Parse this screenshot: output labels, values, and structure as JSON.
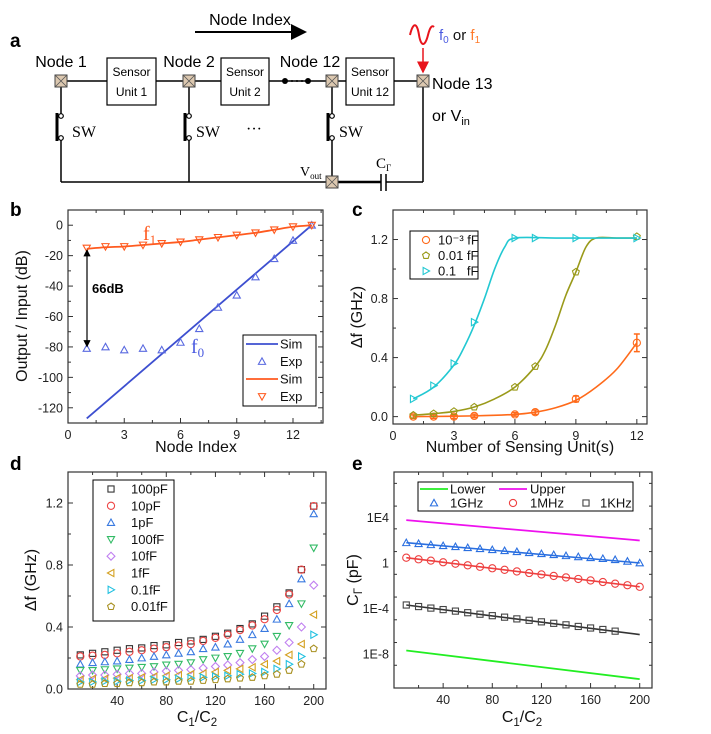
{
  "figure": {
    "panel_labels": {
      "a": "a",
      "b": "b",
      "c": "c",
      "d": "d",
      "e": "e"
    },
    "diagram": {
      "direction_label": "Node Index",
      "nodes": [
        "Node 1",
        "Node 2",
        "Node 12",
        "Node 13"
      ],
      "node13_alt_prefix": "or V",
      "node13_alt_sub": "in",
      "sensor_units": [
        {
          "line1": "Sensor",
          "line2": "Unit 1"
        },
        {
          "line1": "Sensor",
          "line2": "Unit 2"
        },
        {
          "line1": "Sensor",
          "line2": "Unit 12"
        }
      ],
      "switch_label": "SW",
      "ellipsis": "···",
      "vout_main": "V",
      "vout_sub": "out",
      "cap_main": "C",
      "cap_sub": "Γ",
      "input_f0_main": "f",
      "input_f0_sub": "0",
      "input_or": " or ",
      "input_f1_main": "f",
      "input_f1_sub": "1",
      "colors": {
        "f0": "#4a5ae0",
        "f1": "#ff7a2a",
        "signal": "#e8141c",
        "node_fill": "#dcc8b0"
      }
    }
  },
  "chart_data": [
    {
      "id": "b",
      "type": "line",
      "xlabel": [
        {
          "t": "Node Index"
        }
      ],
      "ylabel": [
        {
          "t": "Output / Input (dB)"
        }
      ],
      "xlim": [
        0,
        13.6
      ],
      "ylim": [
        -130,
        10
      ],
      "xticks": [
        0,
        3,
        6,
        9,
        12
      ],
      "yticks": [
        0,
        -20,
        -40,
        -60,
        -80,
        -100,
        -120
      ],
      "legend_position": "bottom-right",
      "annotations": {
        "f1_main": "f",
        "f1_sub": "1",
        "f0_main": "f",
        "f0_sub": "0",
        "gap": "66dB"
      },
      "series": [
        {
          "name": "Sim",
          "kind": "line",
          "color": "#3d4fd0",
          "points": [
            [
              1,
              -127
            ],
            [
              13,
              0
            ]
          ]
        },
        {
          "name": "Exp",
          "kind": "marker",
          "marker": "triangle-up",
          "color": "#5a6ae0",
          "x": [
            1,
            2,
            3,
            4,
            5,
            6,
            7,
            8,
            9,
            10,
            11,
            12,
            13
          ],
          "y": [
            -81,
            -80,
            -82,
            -81,
            -82,
            -77,
            -68,
            -54,
            -46,
            -34,
            -22,
            -10,
            0
          ]
        },
        {
          "name": "Sim",
          "kind": "line",
          "color": "#ff5a1f",
          "points": [
            [
              1,
              -15.5
            ],
            [
              2,
              -14.5
            ],
            [
              3,
              -14
            ],
            [
              4,
              -13
            ],
            [
              5,
              -12
            ],
            [
              6,
              -11
            ],
            [
              7,
              -9.5
            ],
            [
              8,
              -8
            ],
            [
              9,
              -6.5
            ],
            [
              10,
              -5
            ],
            [
              11,
              -3
            ],
            [
              12,
              -1
            ],
            [
              13,
              0
            ]
          ]
        },
        {
          "name": "Exp",
          "kind": "marker",
          "marker": "triangle-down",
          "color": "#ff5a1f",
          "x": [
            1,
            2,
            3,
            4,
            5,
            6,
            7,
            8,
            9,
            10,
            11,
            12,
            13
          ],
          "y": [
            -15,
            -14,
            -14,
            -13,
            -12,
            -11,
            -9.5,
            -8,
            -6.5,
            -5,
            -3,
            -1,
            0
          ]
        }
      ]
    },
    {
      "id": "c",
      "type": "scatter",
      "xlabel": [
        {
          "t": "Number of Sensing Unit(s)"
        }
      ],
      "ylabel": [
        {
          "t": "Δf (GHz)"
        }
      ],
      "xlim": [
        0,
        12.5
      ],
      "ylim": [
        -0.05,
        1.4
      ],
      "xticks": [
        0,
        3,
        6,
        9,
        12
      ],
      "yticks": [
        0.0,
        0.4,
        0.8,
        1.2
      ],
      "ytick_decimals": 1,
      "legend_position": "top-left",
      "series": [
        {
          "name": "10⁻³ fF",
          "marker": "circle",
          "color": "#ff6a1a",
          "x": [
            1,
            2,
            3,
            4,
            6,
            7,
            9,
            12
          ],
          "y": [
            0,
            0,
            0,
            0.005,
            0.015,
            0.03,
            0.12,
            0.5
          ],
          "error": [
            0.012,
            0.012,
            0.012,
            0.012,
            0.012,
            0.015,
            0.02,
            0.06
          ],
          "fit": [
            [
              1,
              0
            ],
            [
              4,
              0.005
            ],
            [
              6,
              0.015
            ],
            [
              7,
              0.03
            ],
            [
              8,
              0.06
            ],
            [
              9,
              0.11
            ],
            [
              10,
              0.2
            ],
            [
              11,
              0.32
            ],
            [
              12,
              0.5
            ]
          ]
        },
        {
          "name": "0.01 fF",
          "marker": "pentagon",
          "color": "#9a9a1a",
          "x": [
            1,
            2,
            3,
            4,
            6,
            7,
            9,
            12
          ],
          "y": [
            0.01,
            0.02,
            0.035,
            0.065,
            0.2,
            0.34,
            0.98,
            1.22
          ],
          "fit": [
            [
              1,
              0.01
            ],
            [
              2,
              0.02
            ],
            [
              3,
              0.035
            ],
            [
              4,
              0.065
            ],
            [
              5,
              0.12
            ],
            [
              6,
              0.2
            ],
            [
              7,
              0.34
            ],
            [
              7.5,
              0.45
            ],
            [
              8,
              0.62
            ],
            [
              8.5,
              0.82
            ],
            [
              9,
              0.98
            ],
            [
              9.5,
              1.15
            ],
            [
              10,
              1.21
            ],
            [
              11,
              1.21
            ],
            [
              12,
              1.21
            ]
          ]
        },
        {
          "name": "0.1   fF",
          "marker": "triangle-right",
          "color": "#22c8d2",
          "x": [
            1,
            2,
            3,
            4,
            6,
            7,
            9,
            12
          ],
          "y": [
            0.12,
            0.21,
            0.36,
            0.64,
            1.21,
            1.21,
            1.21,
            1.21
          ],
          "fit": [
            [
              1,
              0.12
            ],
            [
              2,
              0.2
            ],
            [
              3,
              0.35
            ],
            [
              3.5,
              0.47
            ],
            [
              4,
              0.62
            ],
            [
              4.5,
              0.8
            ],
            [
              5,
              1.0
            ],
            [
              5.5,
              1.15
            ],
            [
              6,
              1.21
            ],
            [
              8,
              1.21
            ],
            [
              10,
              1.21
            ],
            [
              12,
              1.21
            ]
          ]
        }
      ]
    },
    {
      "id": "d",
      "type": "scatter",
      "xlabel": [
        {
          "t": "C"
        },
        {
          "t": "1",
          "sub": true
        },
        {
          "t": "/C"
        },
        {
          "t": "2",
          "sub": true
        }
      ],
      "ylabel": [
        {
          "t": "Δf (GHz)"
        }
      ],
      "xlim": [
        0,
        210
      ],
      "ylim": [
        0,
        1.4
      ],
      "xticks": [
        40,
        80,
        120,
        160,
        200
      ],
      "yticks": [
        0.0,
        0.4,
        0.8,
        1.2
      ],
      "ytick_decimals": 1,
      "legend_position": "top-left",
      "x": [
        10,
        20,
        30,
        40,
        50,
        60,
        70,
        80,
        90,
        100,
        110,
        120,
        130,
        140,
        150,
        160,
        170,
        180,
        190,
        200
      ],
      "series": [
        {
          "name": "100pF",
          "marker": "square",
          "color": "#333333",
          "y": [
            0.22,
            0.23,
            0.24,
            0.25,
            0.26,
            0.265,
            0.28,
            0.285,
            0.3,
            0.31,
            0.32,
            0.34,
            0.36,
            0.39,
            0.42,
            0.47,
            0.53,
            0.62,
            0.77,
            1.18
          ]
        },
        {
          "name": "10pF",
          "marker": "circle",
          "color": "#ee4444",
          "y": [
            0.21,
            0.215,
            0.22,
            0.23,
            0.24,
            0.25,
            0.26,
            0.27,
            0.28,
            0.29,
            0.31,
            0.33,
            0.35,
            0.38,
            0.41,
            0.45,
            0.51,
            0.61,
            0.77,
            1.18
          ]
        },
        {
          "name": "1pF",
          "marker": "triangle-up",
          "color": "#3a7ae0",
          "y": [
            0.16,
            0.17,
            0.175,
            0.18,
            0.19,
            0.2,
            0.21,
            0.22,
            0.23,
            0.24,
            0.26,
            0.27,
            0.29,
            0.32,
            0.35,
            0.39,
            0.45,
            0.55,
            0.71,
            1.13
          ]
        },
        {
          "name": "100fF",
          "marker": "triangle-down",
          "color": "#33bb66",
          "y": [
            0.12,
            0.12,
            0.125,
            0.13,
            0.135,
            0.14,
            0.145,
            0.155,
            0.16,
            0.17,
            0.19,
            0.2,
            0.21,
            0.23,
            0.26,
            0.29,
            0.34,
            0.41,
            0.55,
            0.91
          ]
        },
        {
          "name": "10fF",
          "marker": "diamond",
          "color": "#c080f0",
          "y": [
            0.085,
            0.09,
            0.09,
            0.095,
            0.1,
            0.1,
            0.11,
            0.115,
            0.12,
            0.125,
            0.135,
            0.145,
            0.155,
            0.17,
            0.19,
            0.21,
            0.25,
            0.3,
            0.4,
            0.67
          ]
        },
        {
          "name": "1fF",
          "marker": "triangle-left",
          "color": "#d4a020",
          "y": [
            0.06,
            0.065,
            0.065,
            0.07,
            0.07,
            0.075,
            0.08,
            0.085,
            0.09,
            0.095,
            0.1,
            0.11,
            0.12,
            0.13,
            0.14,
            0.16,
            0.18,
            0.22,
            0.29,
            0.48
          ]
        },
        {
          "name": "0.1fF",
          "marker": "triangle-right",
          "color": "#20c0e0",
          "y": [
            0.045,
            0.045,
            0.05,
            0.05,
            0.055,
            0.055,
            0.06,
            0.06,
            0.065,
            0.07,
            0.075,
            0.08,
            0.085,
            0.095,
            0.1,
            0.11,
            0.13,
            0.16,
            0.21,
            0.35
          ]
        },
        {
          "name": "0.01fF",
          "marker": "pentagon",
          "color": "#a89020",
          "y": [
            0.03,
            0.03,
            0.035,
            0.035,
            0.04,
            0.04,
            0.045,
            0.045,
            0.05,
            0.05,
            0.055,
            0.06,
            0.065,
            0.07,
            0.075,
            0.085,
            0.095,
            0.12,
            0.16,
            0.26
          ]
        }
      ]
    },
    {
      "id": "e",
      "type": "scatter",
      "xlabel": [
        {
          "t": "C"
        },
        {
          "t": "1",
          "sub": true
        },
        {
          "t": "/C"
        },
        {
          "t": "2",
          "sub": true
        }
      ],
      "ylabel": [
        {
          "t": "C"
        },
        {
          "t": "Γ",
          "sub": true
        },
        {
          "t": " (pF)"
        }
      ],
      "xlim": [
        0,
        210
      ],
      "ylim": [
        1e-11,
        100000000.0
      ],
      "ylog": true,
      "xticks": [
        40,
        80,
        120,
        160,
        200
      ],
      "yticks": [
        10000.0,
        1,
        0.0001,
        1e-08
      ],
      "ytick_labels": [
        "1E4",
        "1",
        "1E-4",
        "1E-8"
      ],
      "legend_position": "top",
      "series": [
        {
          "name": "Lower",
          "kind": "line",
          "color": "#22ee22",
          "points": [
            [
              10,
              2e-08
            ],
            [
              200,
              6e-11
            ]
          ]
        },
        {
          "name": "Upper",
          "kind": "line",
          "color": "#ee11ee",
          "points": [
            [
              10,
              5800
            ],
            [
              200,
              95
            ]
          ]
        },
        {
          "name": "1GHz",
          "marker": "triangle-up",
          "color": "#2a6fe0",
          "x": [
            10,
            20,
            30,
            40,
            50,
            60,
            70,
            80,
            90,
            100,
            110,
            120,
            130,
            140,
            150,
            160,
            170,
            180,
            190,
            200
          ],
          "y": [
            60,
            50,
            40,
            33,
            27,
            22,
            18,
            14.6,
            12,
            9.8,
            8,
            6.5,
            5.3,
            4.3,
            3.5,
            2.9,
            2.4,
            1.95,
            1.4,
            1.0
          ],
          "fit": [
            [
              10,
              60
            ],
            [
              200,
              1
            ]
          ]
        },
        {
          "name": "1MHz",
          "marker": "circle",
          "color": "#ee4040",
          "x": [
            10,
            20,
            30,
            40,
            50,
            60,
            70,
            80,
            90,
            100,
            110,
            120,
            130,
            140,
            150,
            160,
            170,
            180,
            190,
            200
          ],
          "y": [
            2.9,
            2.1,
            1.6,
            1.15,
            0.85,
            0.62,
            0.46,
            0.34,
            0.25,
            0.18,
            0.13,
            0.098,
            0.072,
            0.053,
            0.039,
            0.029,
            0.021,
            0.015,
            0.011,
            0.008
          ],
          "fit": [
            [
              10,
              2.9
            ],
            [
              200,
              0.008
            ]
          ]
        },
        {
          "name": "1KHz",
          "marker": "square",
          "color": "#444444",
          "x": [
            10,
            20,
            30,
            40,
            50,
            60,
            70,
            80,
            90,
            100,
            110,
            120,
            130,
            140,
            150,
            160,
            170,
            180
          ],
          "y": [
            0.0002,
            0.000146,
            0.000107,
            7.9e-05,
            5.8e-05,
            4.2e-05,
            3.1e-05,
            2.3e-05,
            1.7e-05,
            1.2e-05,
            9e-06,
            6.6e-06,
            4.9e-06,
            3.6e-06,
            2.6e-06,
            1.9e-06,
            1.4e-06,
            1e-06
          ],
          "fit": [
            [
              10,
              0.0002
            ],
            [
              200,
              5e-07
            ]
          ],
          "fit_color": "#333333"
        }
      ]
    }
  ]
}
